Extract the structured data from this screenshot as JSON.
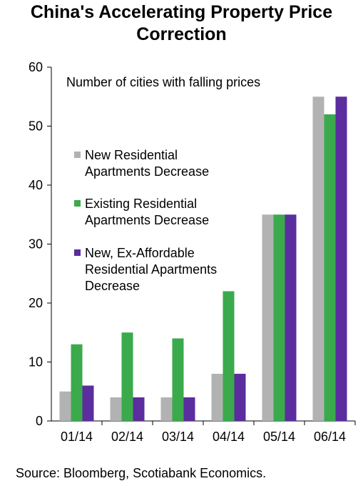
{
  "chart_data": {
    "type": "bar",
    "title_lines": [
      "China's Accelerating Property Price",
      "Correction"
    ],
    "annotation": "Number of cities with falling prices",
    "categories": [
      "01/14",
      "02/14",
      "03/14",
      "04/14",
      "05/14",
      "06/14"
    ],
    "series": [
      {
        "name_lines": [
          "New Residential",
          "Apartments Decrease"
        ],
        "color": "#b2b2b2",
        "values": [
          5,
          4,
          4,
          8,
          35,
          55
        ]
      },
      {
        "name_lines": [
          "Existing Residential",
          "Apartments Decrease"
        ],
        "color": "#3aaa4c",
        "values": [
          13,
          15,
          14,
          22,
          35,
          52
        ]
      },
      {
        "name_lines": [
          "New, Ex-Affordable",
          "Residential Apartments",
          "Decrease"
        ],
        "color": "#5b2d9e",
        "values": [
          6,
          4,
          4,
          8,
          35,
          55
        ]
      }
    ],
    "ylim": [
      0,
      60
    ],
    "yticks": [
      "0",
      "10",
      "20",
      "30",
      "40",
      "50",
      "60"
    ],
    "grid": false,
    "legend_position": "left"
  },
  "source": "Source: Bloomberg, Scotiabank Economics."
}
